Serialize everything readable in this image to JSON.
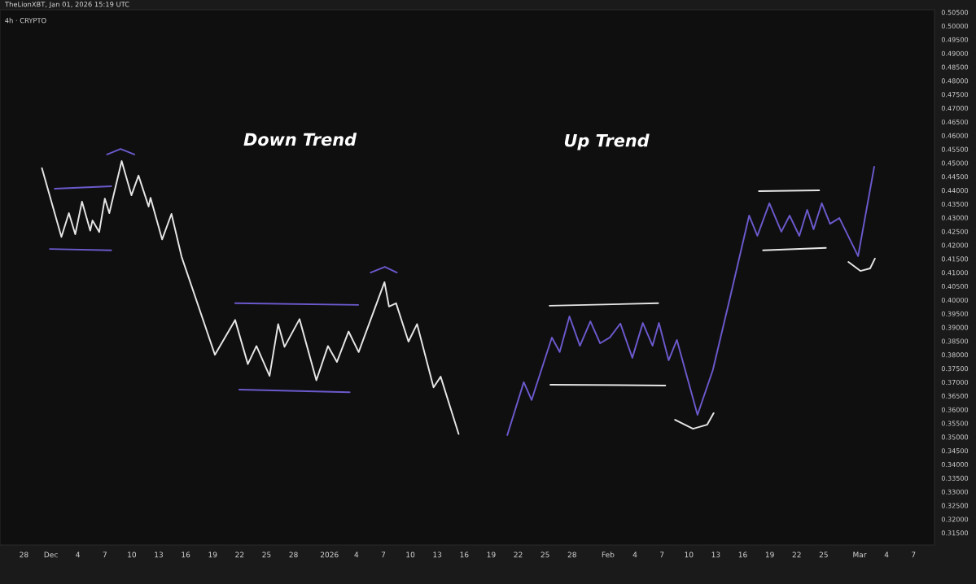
{
  "chart_data": {
    "type": "line",
    "title": "TheLionXBT, Jan 01, 2026 15:19 UTC",
    "subtitle": "4h · CRYPTO",
    "annotations": [
      "Down Trend",
      "Up Trend"
    ],
    "xlim": [
      "2025-11-25T08:00",
      "2026-03-09T08:00"
    ],
    "ylim": [
      0.3106,
      0.5059
    ],
    "xticks": [
      {
        "value": "2025-11-28",
        "label": "28"
      },
      {
        "value": "2025-12-01",
        "label": "Dec"
      },
      {
        "value": "2025-12-04",
        "label": "4"
      },
      {
        "value": "2025-12-07",
        "label": "7"
      },
      {
        "value": "2025-12-10",
        "label": "10"
      },
      {
        "value": "2025-12-13",
        "label": "13"
      },
      {
        "value": "2025-12-16",
        "label": "16"
      },
      {
        "value": "2025-12-19",
        "label": "19"
      },
      {
        "value": "2025-12-22",
        "label": "22"
      },
      {
        "value": "2025-12-25",
        "label": "25"
      },
      {
        "value": "2025-12-28",
        "label": "28"
      },
      {
        "value": "2026-01-01",
        "label": "2026"
      },
      {
        "value": "2026-01-04",
        "label": "4"
      },
      {
        "value": "2026-01-07",
        "label": "7"
      },
      {
        "value": "2026-01-10",
        "label": "10"
      },
      {
        "value": "2026-01-13",
        "label": "13"
      },
      {
        "value": "2026-01-16",
        "label": "16"
      },
      {
        "value": "2026-01-19",
        "label": "19"
      },
      {
        "value": "2026-01-22",
        "label": "22"
      },
      {
        "value": "2026-01-25",
        "label": "25"
      },
      {
        "value": "2026-01-28",
        "label": "28"
      },
      {
        "value": "2026-02-01",
        "label": "Feb"
      },
      {
        "value": "2026-02-04",
        "label": "4"
      },
      {
        "value": "2026-02-07",
        "label": "7"
      },
      {
        "value": "2026-02-10",
        "label": "10"
      },
      {
        "value": "2026-02-13",
        "label": "13"
      },
      {
        "value": "2026-02-16",
        "label": "16"
      },
      {
        "value": "2026-02-19",
        "label": "19"
      },
      {
        "value": "2026-02-22",
        "label": "22"
      },
      {
        "value": "2026-02-25",
        "label": "25"
      },
      {
        "value": "2026-03-01",
        "label": "Mar"
      },
      {
        "value": "2026-03-04",
        "label": "4"
      },
      {
        "value": "2026-03-07",
        "label": "7"
      }
    ],
    "yticks": [
      {
        "value": 0.315,
        "label": "0.31500"
      },
      {
        "value": 0.32,
        "label": "0.32000"
      },
      {
        "value": 0.325,
        "label": "0.32500"
      },
      {
        "value": 0.33,
        "label": "0.33000"
      },
      {
        "value": 0.335,
        "label": "0.33500"
      },
      {
        "value": 0.34,
        "label": "0.34000"
      },
      {
        "value": 0.345,
        "label": "0.34500"
      },
      {
        "value": 0.35,
        "label": "0.35000"
      },
      {
        "value": 0.355,
        "label": "0.35500"
      },
      {
        "value": 0.36,
        "label": "0.36000"
      },
      {
        "value": 0.365,
        "label": "0.36500"
      },
      {
        "value": 0.37,
        "label": "0.37000"
      },
      {
        "value": 0.375,
        "label": "0.37500"
      },
      {
        "value": 0.38,
        "label": "0.38000"
      },
      {
        "value": 0.385,
        "label": "0.38500"
      },
      {
        "value": 0.39,
        "label": "0.39000"
      },
      {
        "value": 0.395,
        "label": "0.39500"
      },
      {
        "value": 0.4,
        "label": "0.40000"
      },
      {
        "value": 0.405,
        "label": "0.40500"
      },
      {
        "value": 0.41,
        "label": "0.41000"
      },
      {
        "value": 0.415,
        "label": "0.41500"
      },
      {
        "value": 0.42,
        "label": "0.42000"
      },
      {
        "value": 0.425,
        "label": "0.42500"
      },
      {
        "value": 0.43,
        "label": "0.43000"
      },
      {
        "value": 0.435,
        "label": "0.43500"
      },
      {
        "value": 0.44,
        "label": "0.44000"
      },
      {
        "value": 0.445,
        "label": "0.44500"
      },
      {
        "value": 0.45,
        "label": "0.45000"
      },
      {
        "value": 0.455,
        "label": "0.45500"
      },
      {
        "value": 0.46,
        "label": "0.46000"
      },
      {
        "value": 0.465,
        "label": "0.46500"
      },
      {
        "value": 0.47,
        "label": "0.47000"
      },
      {
        "value": 0.475,
        "label": "0.47500"
      },
      {
        "value": 0.48,
        "label": "0.48000"
      },
      {
        "value": 0.485,
        "label": "0.48500"
      },
      {
        "value": 0.49,
        "label": "0.49000"
      },
      {
        "value": 0.495,
        "label": "0.49500"
      },
      {
        "value": 0.5,
        "label": "0.50000"
      },
      {
        "value": 0.505,
        "label": "0.50500"
      }
    ],
    "series": [
      {
        "color": "#e6e6e6",
        "x": [
          "2025-11-30T00:00",
          "2025-12-02T04:00",
          "2025-12-03T00:00",
          "2025-12-03T17:00",
          "2025-12-04T11:00",
          "2025-12-05T09:00",
          "2025-12-05T15:00",
          "2025-12-06T09:00",
          "2025-12-07T00:00",
          "2025-12-07T12:00",
          "2025-12-08T21:00",
          "2025-12-09T23:00",
          "2025-12-10T18:00",
          "2025-12-11T21:00",
          "2025-12-12T02:00",
          "2025-12-13T09:00",
          "2025-12-14T10:00",
          "2025-12-15T13:00",
          "2025-12-19T06:00",
          "2025-12-21T12:00",
          "2025-12-22T22:00",
          "2025-12-23T21:00",
          "2025-12-25T08:00",
          "2025-12-26T07:00",
          "2025-12-27T00:00",
          "2025-12-28T16:00",
          "2025-12-30T13:00",
          "2025-12-31T20:00",
          "2026-01-01T20:00",
          "2026-01-03T03:00",
          "2026-01-04T06:00",
          "2026-01-07T03:00",
          "2026-01-07T15:00",
          "2026-01-08T10:00",
          "2026-01-09T19:00",
          "2026-01-10T18:00",
          "2026-01-12T14:00",
          "2026-01-13T09:00",
          "2026-01-15T09:00"
        ],
        "values": [
          0.4481,
          0.423,
          0.4317,
          0.424,
          0.4359,
          0.4253,
          0.429,
          0.4248,
          0.437,
          0.4317,
          0.4507,
          0.4382,
          0.4454,
          0.4341,
          0.4373,
          0.4221,
          0.4314,
          0.4158,
          0.38,
          0.3927,
          0.3766,
          0.3832,
          0.3723,
          0.3912,
          0.3829,
          0.393,
          0.3707,
          0.3832,
          0.3774,
          0.3885,
          0.381,
          0.4065,
          0.3976,
          0.3988,
          0.3848,
          0.3912,
          0.3681,
          0.372,
          0.3511
        ]
      },
      {
        "color": "#6a5acd",
        "x": [
          "2026-01-20T19:00",
          "2026-01-22T15:00",
          "2026-01-23T12:00",
          "2026-01-25T18:00",
          "2026-01-26T15:00",
          "2026-01-27T17:00",
          "2026-01-28T21:00",
          "2026-01-30T01:00",
          "2026-01-31T03:00",
          "2026-02-01T05:00",
          "2026-02-02T09:00",
          "2026-02-03T17:00",
          "2026-02-04T21:00",
          "2026-02-05T23:00",
          "2026-02-06T16:00",
          "2026-02-07T18:00",
          "2026-02-08T16:00",
          "2026-02-10T23:00",
          "2026-02-12T16:00",
          "2026-02-14T12:00",
          "2026-02-16T17:00",
          "2026-02-17T15:00",
          "2026-02-18T23:00",
          "2026-02-20T07:00",
          "2026-02-21T05:00",
          "2026-02-22T07:00",
          "2026-02-23T04:00",
          "2026-02-23T21:00",
          "2026-02-24T19:00",
          "2026-02-25T17:00",
          "2026-02-26T18:00",
          "2026-02-28T20:00",
          "2026-03-02T15:00"
        ],
        "values": [
          0.3507,
          0.37,
          0.3635,
          0.3863,
          0.381,
          0.394,
          0.3833,
          0.3922,
          0.3842,
          0.3863,
          0.3914,
          0.3789,
          0.3916,
          0.3833,
          0.3916,
          0.378,
          0.3854,
          0.3581,
          0.3744,
          0.3997,
          0.4308,
          0.4234,
          0.4353,
          0.4249,
          0.4308,
          0.4234,
          0.4329,
          0.4258,
          0.4353,
          0.4278,
          0.4299,
          0.416,
          0.4486
        ]
      },
      {
        "color": "#6a5acd",
        "x": [
          "2025-12-01T10:00",
          "2025-12-07T17:00"
        ],
        "values": [
          0.4406,
          0.4415
        ]
      },
      {
        "color": "#6a5acd",
        "x": [
          "2025-11-30T21:00",
          "2025-12-07T17:00"
        ],
        "values": [
          0.4186,
          0.4181
        ]
      },
      {
        "color": "#6a5acd",
        "x": [
          "2025-12-07T06:00",
          "2025-12-08T18:00",
          "2025-12-10T07:00"
        ],
        "values": [
          0.4531,
          0.4551,
          0.4531
        ]
      },
      {
        "color": "#6a5acd",
        "x": [
          "2025-12-21T12:00",
          "2026-01-04T05:00"
        ],
        "values": [
          0.3988,
          0.3982
        ]
      },
      {
        "color": "#6a5acd",
        "x": [
          "2025-12-21T23:00",
          "2026-01-03T06:00"
        ],
        "values": [
          0.3673,
          0.3663
        ]
      },
      {
        "color": "#6a5acd",
        "x": [
          "2026-01-05T14:00",
          "2026-01-07T04:00",
          "2026-01-08T12:00"
        ],
        "values": [
          0.41,
          0.4121,
          0.41
        ]
      },
      {
        "color": "#e6e6e6",
        "x": [
          "2026-01-25T12:00",
          "2026-02-06T14:00"
        ],
        "values": [
          0.3979,
          0.3988
        ]
      },
      {
        "color": "#e6e6e6",
        "x": [
          "2026-01-25T14:00",
          "2026-02-07T09:00"
        ],
        "values": [
          0.3691,
          0.3688
        ]
      },
      {
        "color": "#e6e6e6",
        "x": [
          "2026-02-08T11:00",
          "2026-02-10T11:00",
          "2026-02-12T01:00",
          "2026-02-12T18:00"
        ],
        "values": [
          0.3563,
          0.353,
          0.3545,
          0.3587
        ]
      },
      {
        "color": "#e6e6e6",
        "x": [
          "2026-02-17T19:00",
          "2026-02-24T12:00"
        ],
        "values": [
          0.4397,
          0.44
        ]
      },
      {
        "color": "#e6e6e6",
        "x": [
          "2026-02-18T06:00",
          "2026-02-25T06:00"
        ],
        "values": [
          0.4181,
          0.419
        ]
      },
      {
        "color": "#e6e6e6",
        "x": [
          "2026-02-27T18:00",
          "2026-03-01T02:00",
          "2026-03-02T04:00",
          "2026-03-02T17:00"
        ],
        "values": [
          0.4139,
          0.4106,
          0.4115,
          0.4151
        ]
      }
    ]
  }
}
